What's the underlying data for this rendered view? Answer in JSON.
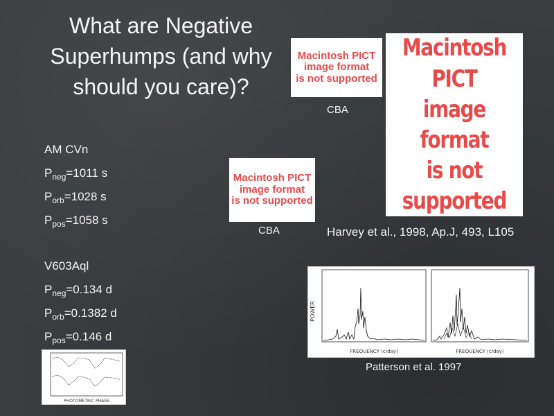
{
  "slide": {
    "title": "What are Negative Superhumps (and why should you care)?",
    "image_placeholder_line1": "Macintosh PICT",
    "image_placeholder_line2": "image format",
    "image_placeholder_line3": "is not supported",
    "credit_top": "CBA",
    "credit_mid": "CBA",
    "harvey_ref": "Harvey et al., 1998, Ap.J, 493, L105",
    "patterson_ref": "Patterson et al. 1997",
    "am_cvn": {
      "name": "AM CVn",
      "pneg": {
        "symbol": "P",
        "sub": "neg",
        "value": "=1011 s"
      },
      "porb": {
        "symbol": "P",
        "sub": "orb",
        "value": "=1028 s"
      },
      "ppos": {
        "symbol": "P",
        "sub": "pos",
        "value": "=1058 s"
      }
    },
    "v603aql": {
      "name": "V603Aql",
      "pneg": {
        "symbol": "P",
        "sub": "neg",
        "value": "=0.134 d"
      },
      "porb": {
        "symbol": "P",
        "sub": "orb",
        "value": "=0.1382 d"
      },
      "ppos": {
        "symbol": "P",
        "sub": "pos",
        "value": "=0.146 d"
      }
    },
    "power_plot": {
      "ylabel": "POWER",
      "xlabel_left": "FREQUENCY (c/day)",
      "xlabel_right": "FREQUENCY (c/day)"
    },
    "phase_plot": {
      "xlabel": "PHOTOMETRIC PHASE"
    }
  }
}
